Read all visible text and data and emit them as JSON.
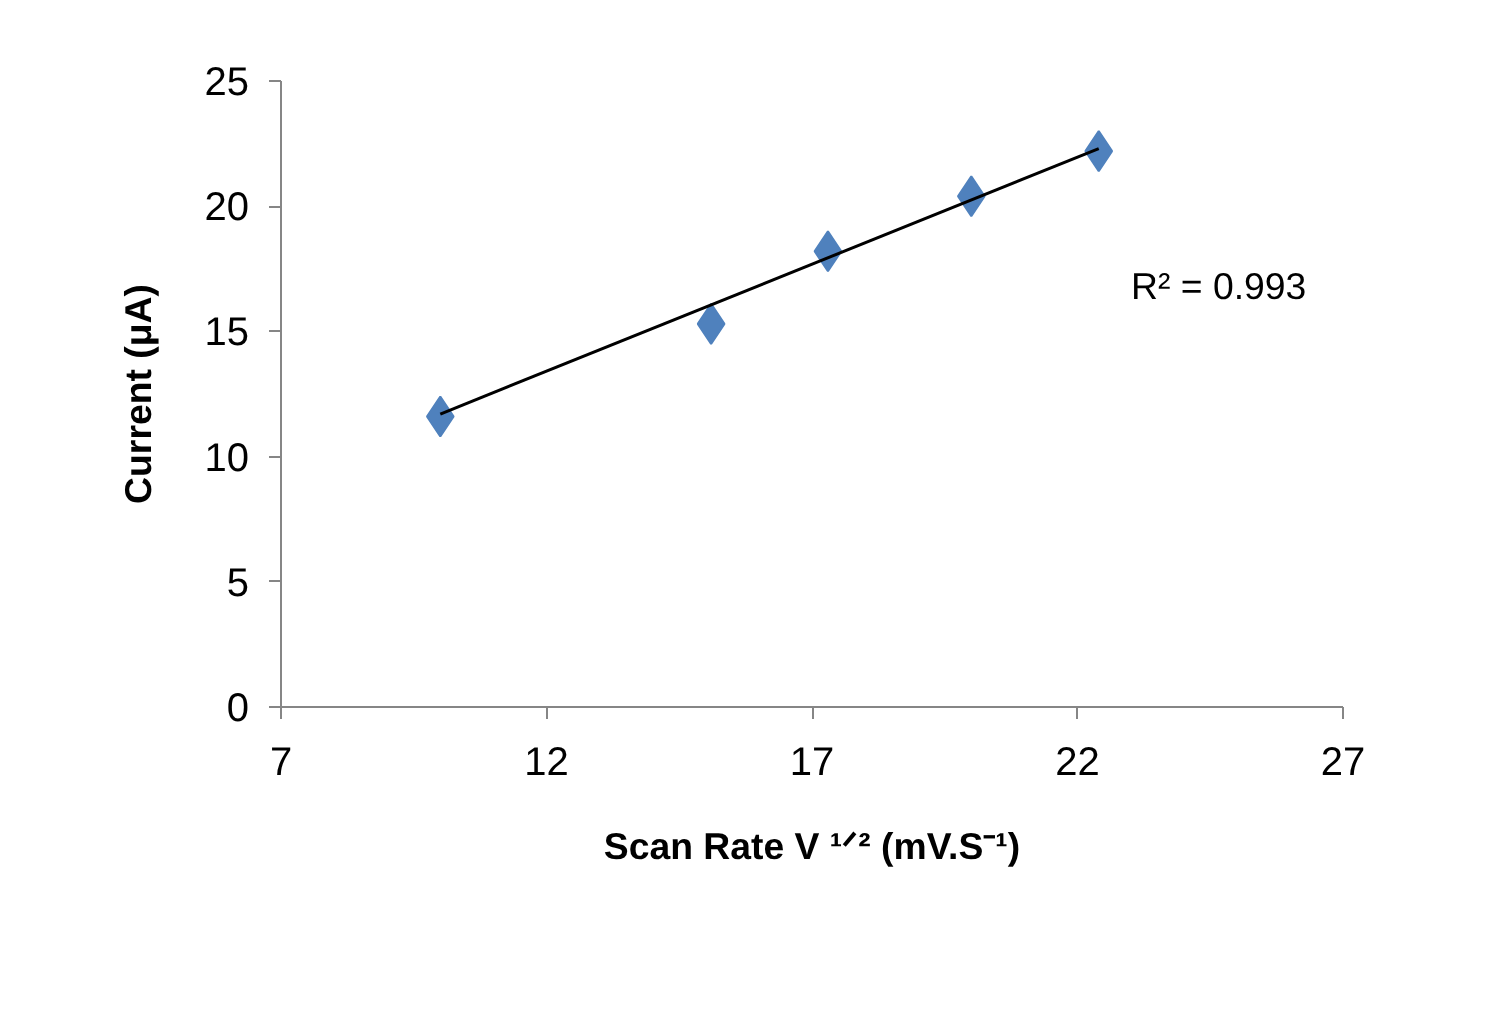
{
  "chart_data": {
    "type": "scatter",
    "xlabel": "Scan Rate V ¹ᐟ² (mV.S⁻¹)",
    "ylabel": "Current (μA)",
    "x": [
      10,
      15.1,
      17.3,
      20,
      22.4
    ],
    "series": [
      {
        "color": "#4f81bd",
        "marker": "diamond",
        "values": [
          11.6,
          15.3,
          18.2,
          20.4,
          22.2
        ]
      },
      {
        "type": "line",
        "color": "#000000",
        "x": [
          10,
          22.4
        ],
        "values": [
          11.7,
          22.3
        ]
      }
    ],
    "annotations": [
      "R² = 0.993"
    ],
    "xlim": [
      7,
      27
    ],
    "xticks": [
      7,
      12,
      17,
      22,
      27
    ],
    "ylim": [
      0,
      25
    ],
    "yticks": [
      0,
      5,
      10,
      15,
      20,
      25
    ],
    "grid": false
  }
}
